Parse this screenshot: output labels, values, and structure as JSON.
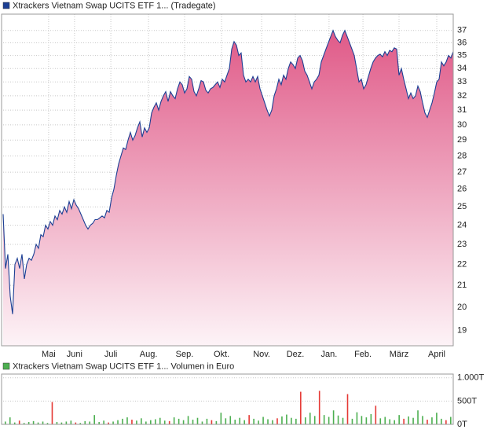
{
  "chart_data": [
    {
      "type": "area",
      "log_scale": true,
      "grid": true,
      "series": [
        {
          "name": "Xtrackers Vietnam Swap UCITS ETF 1... (Tradegate)",
          "color": "#1c3f94",
          "values": [
            24.6,
            21.8,
            22.5,
            20.5,
            19.7,
            22.0,
            22.3,
            21.8,
            22.5,
            21.3,
            22.0,
            22.3,
            22.2,
            22.5,
            23.0,
            22.8,
            23.5,
            23.4,
            24.0,
            23.8,
            24.2,
            24.0,
            24.5,
            24.3,
            24.8,
            24.6,
            25.0,
            24.7,
            25.3,
            24.9,
            25.4,
            25.1,
            24.9,
            24.6,
            24.3,
            24.0,
            23.8,
            24.0,
            24.1,
            24.3,
            24.3,
            24.4,
            24.5,
            24.4,
            24.8,
            24.7,
            25.5,
            26.0,
            26.8,
            27.5,
            28.0,
            28.5,
            28.4,
            29.0,
            29.5,
            29.0,
            29.3,
            29.8,
            30.2,
            29.2,
            29.8,
            29.5,
            29.8,
            30.8,
            31.2,
            31.5,
            31.0,
            31.6,
            32.0,
            32.3,
            31.6,
            32.3,
            32.0,
            31.8,
            32.5,
            33.0,
            32.8,
            32.2,
            32.5,
            33.4,
            33.2,
            32.3,
            32.0,
            32.5,
            33.1,
            33.0,
            32.4,
            32.2,
            32.5,
            32.6,
            32.8,
            33.0,
            32.6,
            33.2,
            33.0,
            33.5,
            34.0,
            35.5,
            36.1,
            35.8,
            35.0,
            35.2,
            33.5,
            33.0,
            33.2,
            33.0,
            33.4,
            33.0,
            33.4,
            32.5,
            32.0,
            31.5,
            31.0,
            30.6,
            31.0,
            32.0,
            32.5,
            33.2,
            32.8,
            33.5,
            33.2,
            34.0,
            34.5,
            34.3,
            34.0,
            34.8,
            35.0,
            34.6,
            33.8,
            33.5,
            33.0,
            32.5,
            33.0,
            33.2,
            33.5,
            34.5,
            35.0,
            35.5,
            36.0,
            36.5,
            37.0,
            36.5,
            36.2,
            36.0,
            36.6,
            37.0,
            36.5,
            36.0,
            35.5,
            35.0,
            34.0,
            33.0,
            33.2,
            32.5,
            32.8,
            33.4,
            34.0,
            34.5,
            34.8,
            35.0,
            35.1,
            34.9,
            35.3,
            35.0,
            35.4,
            35.3,
            35.6,
            35.5,
            33.5,
            34.0,
            33.2,
            32.5,
            31.8,
            32.2,
            31.8,
            32.0,
            32.7,
            32.3,
            31.5,
            30.8,
            30.5,
            31.0,
            31.5,
            32.2,
            33.0,
            33.2,
            34.5,
            34.2,
            34.5,
            35.0,
            34.8,
            35.3
          ]
        }
      ],
      "fill_top": "#e05a88",
      "fill_bottom": "#fdf3f7",
      "xlim": [
        0,
        191
      ],
      "xticks": [
        {
          "value": 19.3,
          "label": "Mai"
        },
        {
          "value": 30.3,
          "label": "Juni"
        },
        {
          "value": 45.7,
          "label": "Juli"
        },
        {
          "value": 61.7,
          "label": "Aug."
        },
        {
          "value": 77,
          "label": "Sep."
        },
        {
          "value": 92.7,
          "label": "Okt."
        },
        {
          "value": 109.7,
          "label": "Nov."
        },
        {
          "value": 124,
          "label": "Dez."
        },
        {
          "value": 138.3,
          "label": "Jan."
        },
        {
          "value": 152.7,
          "label": "Feb."
        },
        {
          "value": 168,
          "label": "März"
        },
        {
          "value": 184,
          "label": "April"
        }
      ],
      "ylim": [
        18.36,
        38.1
      ],
      "yticks": [
        19,
        20,
        21,
        22,
        23,
        24,
        25,
        26,
        27,
        28,
        29,
        30,
        31,
        32,
        33,
        34,
        35,
        36,
        37
      ]
    },
    {
      "type": "bar",
      "grid": true,
      "series": [
        {
          "name": "Xtrackers Vietnam Swap UCITS ETF 1... Volumen in Euro",
          "color": "#4caf50",
          "values": [
            60,
            150,
            40,
            80,
            30,
            50,
            70,
            40,
            60,
            30,
            480,
            50,
            40,
            60,
            80,
            40,
            30,
            70,
            60,
            200,
            50,
            80,
            40,
            60,
            90,
            120,
            150,
            100,
            80,
            130,
            60,
            90,
            110,
            140,
            80,
            70,
            150,
            120,
            90,
            180,
            100,
            140,
            60,
            120,
            90,
            70,
            250,
            130,
            180,
            100,
            140,
            90,
            200,
            120,
            80,
            160,
            110,
            90,
            130,
            170,
            210,
            140,
            120,
            700,
            150,
            250,
            180,
            720,
            200,
            160,
            300,
            190,
            140,
            650,
            120,
            260,
            180,
            150,
            220,
            400,
            130,
            160,
            110,
            90,
            200,
            120,
            170,
            140,
            300,
            180,
            100,
            150,
            250,
            120,
            90,
            160
          ],
          "colors": [
            "#4caf50",
            "#4caf50",
            "#4caf50",
            "#e53935",
            "#4caf50",
            "#4caf50",
            "#4caf50",
            "#4caf50",
            "#4caf50",
            "#4caf50",
            "#e53935",
            "#4caf50",
            "#4caf50",
            "#4caf50",
            "#4caf50",
            "#e53935",
            "#4caf50",
            "#4caf50",
            "#4caf50",
            "#4caf50",
            "#4caf50",
            "#4caf50",
            "#e53935",
            "#4caf50",
            "#4caf50",
            "#4caf50",
            "#4caf50",
            "#e53935",
            "#4caf50",
            "#4caf50",
            "#4caf50",
            "#4caf50",
            "#4caf50",
            "#4caf50",
            "#4caf50",
            "#e53935",
            "#4caf50",
            "#4caf50",
            "#4caf50",
            "#4caf50",
            "#4caf50",
            "#4caf50",
            "#4caf50",
            "#4caf50",
            "#e53935",
            "#4caf50",
            "#4caf50",
            "#4caf50",
            "#4caf50",
            "#4caf50",
            "#4caf50",
            "#4caf50",
            "#e53935",
            "#4caf50",
            "#4caf50",
            "#4caf50",
            "#4caf50",
            "#4caf50",
            "#e53935",
            "#4caf50",
            "#4caf50",
            "#4caf50",
            "#4caf50",
            "#e53935",
            "#4caf50",
            "#4caf50",
            "#4caf50",
            "#e53935",
            "#4caf50",
            "#4caf50",
            "#4caf50",
            "#4caf50",
            "#4caf50",
            "#e53935",
            "#4caf50",
            "#4caf50",
            "#4caf50",
            "#4caf50",
            "#4caf50",
            "#e53935",
            "#4caf50",
            "#4caf50",
            "#4caf50",
            "#4caf50",
            "#4caf50",
            "#e53935",
            "#4caf50",
            "#4caf50",
            "#4caf50",
            "#4caf50",
            "#e53935",
            "#4caf50",
            "#4caf50",
            "#4caf50",
            "#e53935",
            "#4caf50"
          ]
        }
      ],
      "ylim": [
        0,
        1080
      ],
      "yticks": [
        {
          "value": 0,
          "label": "0T"
        },
        {
          "value": 500,
          "label": "500T"
        },
        {
          "value": 1000,
          "label": "1.000T"
        }
      ]
    }
  ]
}
